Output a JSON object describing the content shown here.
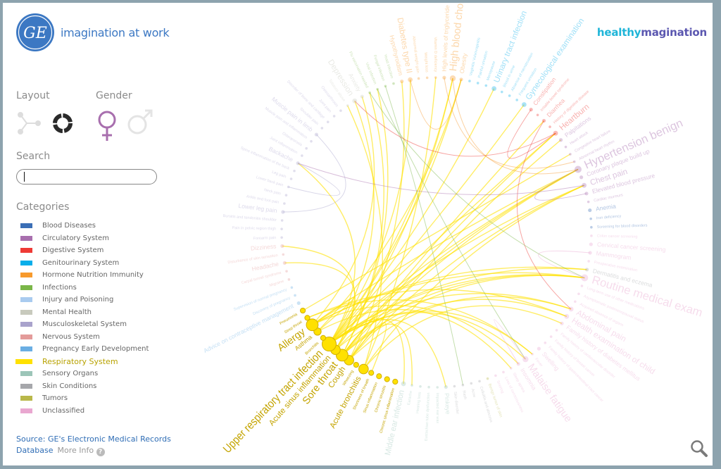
{
  "header": {
    "tagline": "imagination at work",
    "brand_part1": "healthy",
    "brand_part2": "magination",
    "logo_text": "GE"
  },
  "controls": {
    "layout_label": "Layout",
    "layout_options": [
      "network",
      "circle"
    ],
    "layout_selected": "circle",
    "gender_label": "Gender",
    "gender_options": [
      "female",
      "male"
    ],
    "gender_selected": "female",
    "search_label": "Search",
    "search_value": "",
    "search_placeholder": "",
    "categories_label": "Categories"
  },
  "categories": [
    {
      "id": "bl",
      "name": "Blood Diseases",
      "color": "#3b6fb6"
    },
    {
      "id": "ci",
      "name": "Circulatory System",
      "color": "#a86fae"
    },
    {
      "id": "di",
      "name": "Digestive System",
      "color": "#ee3a35"
    },
    {
      "id": "ge",
      "name": "Genitourinary System",
      "color": "#09aeea"
    },
    {
      "id": "ho",
      "name": "Hormone Nutrition Immunity",
      "color": "#f79a2d"
    },
    {
      "id": "in",
      "name": "Infections",
      "color": "#7ab648"
    },
    {
      "id": "ij",
      "name": "Injury and Poisoning",
      "color": "#a9cbef"
    },
    {
      "id": "me",
      "name": "Mental Health",
      "color": "#c8cabd"
    },
    {
      "id": "mu",
      "name": "Musculoskeletal System",
      "color": "#a9a3cc"
    },
    {
      "id": "ne",
      "name": "Nervous System",
      "color": "#e39b9a"
    },
    {
      "id": "pr",
      "name": "Pregnancy  Early Development",
      "color": "#6aaee3"
    },
    {
      "id": "re",
      "name": "Respiratory System",
      "color": "#ffe100"
    },
    {
      "id": "se",
      "name": "Sensory Organs",
      "color": "#9cc5b8"
    },
    {
      "id": "sk",
      "name": "Skin Conditions",
      "color": "#a6a7ab"
    },
    {
      "id": "tu",
      "name": "Tumors",
      "color": "#b9b84a"
    },
    {
      "id": "un",
      "name": "Unclassified",
      "color": "#e9a7d0"
    }
  ],
  "selected_category": "re",
  "footer": {
    "source": "Source: GE's Electronic Medical Records Database",
    "more_info": "More Info",
    "help": "?"
  },
  "chart_data": {
    "type": "chord-circle",
    "nodes": [
      [
        "Hypertension benign",
        "ci",
        5
      ],
      [
        "Coronary plaque build up",
        "ci",
        2
      ],
      [
        "Chest pain",
        "ci",
        3
      ],
      [
        "Elevated blood pressure",
        "ci",
        2
      ],
      [
        "Cardiac murmurs",
        "ci",
        1
      ],
      [
        "Anemia",
        "bl",
        2
      ],
      [
        "Iron deficiency",
        "bl",
        1
      ],
      [
        "Screening for blood disorders",
        "bl",
        1
      ],
      [
        "Colon cancer screening",
        "un",
        1
      ],
      [
        "Cervical cancer screening",
        "un",
        2
      ],
      [
        "Mammogram",
        "un",
        2
      ],
      [
        "Preoperative examination",
        "un",
        1
      ],
      [
        "Dermatitis and eczema",
        "sk",
        2
      ],
      [
        "Routine medical exam",
        "un",
        5
      ],
      [
        "Long-term use of other medications",
        "un",
        1
      ],
      [
        "Asymptomatic postmenopausal status",
        "un",
        1
      ],
      [
        "Acquired absence of organs",
        "un",
        1
      ],
      [
        "Abdominal pain",
        "un",
        3
      ],
      [
        "Health examination of child",
        "un",
        3
      ],
      [
        "Family history of diabetes mellitus",
        "un",
        2
      ],
      [
        "Family history of cardiovascular disorder",
        "un",
        1
      ],
      [
        "Family history of breast cancer",
        "un",
        1
      ],
      [
        "Family history of gastrointestinal tract cancer",
        "un",
        1
      ],
      [
        "Swelling",
        "un",
        2
      ],
      [
        "Fever",
        "un",
        1
      ],
      [
        "Malaise fatigue",
        "un",
        4
      ],
      [
        "Insomnia",
        "un",
        2
      ],
      [
        "Sleep apnea",
        "un",
        1
      ],
      [
        "Loss of consciousness",
        "un",
        1
      ],
      [
        "Snoring",
        "un",
        1
      ],
      [
        "Benign tumor of skin",
        "tu",
        1
      ],
      [
        "Cellulitis and abscess",
        "sk",
        1
      ],
      [
        "Acne",
        "sk",
        1
      ],
      [
        "Rash",
        "sk",
        1
      ],
      [
        "Skin disorder",
        "sk",
        1
      ],
      [
        "Pinkeye",
        "se",
        2
      ],
      [
        "Impacted ear wax",
        "se",
        1
      ],
      [
        "Eustachian tube dysfunction",
        "se",
        1
      ],
      [
        "Hearing loss",
        "se",
        1
      ],
      [
        "Earache",
        "se",
        1
      ],
      [
        "Middle ear infection",
        "se",
        3
      ],
      [
        "Chronic sinus inflammation",
        "re",
        1
      ],
      [
        "Chronic sinusitis",
        "re",
        1
      ],
      [
        "Sinus inflammation",
        "re",
        1
      ],
      [
        "Shortness of breath",
        "re",
        1
      ],
      [
        "Acute bronchitis",
        "re",
        3
      ],
      [
        "Wheezing",
        "re",
        1
      ],
      [
        "Cough",
        "re",
        3
      ],
      [
        "Sore throat",
        "re",
        4
      ],
      [
        "Acute sinus inflammation",
        "re",
        3
      ],
      [
        "Upper respiratory tract infection",
        "re",
        5
      ],
      [
        "Bronchitis",
        "re",
        1
      ],
      [
        "Asthma",
        "re",
        2
      ],
      [
        "Allergy",
        "re",
        4
      ],
      [
        "Strep throat",
        "re",
        1
      ],
      [
        "Pneumonia",
        "re",
        1
      ],
      [
        "Advice on contraceptive management",
        "pr",
        2
      ],
      [
        "Discovery of pregnancy",
        "pr",
        1
      ],
      [
        "Supervision of normal pregnancy",
        "pr",
        1
      ],
      [
        "Migraine",
        "ne",
        1
      ],
      [
        "Carpal tunnel syndrome",
        "ne",
        1
      ],
      [
        "Headache",
        "ne",
        2
      ],
      [
        "Disturbance of skin sensation",
        "ne",
        1
      ],
      [
        "Dizziness",
        "ne",
        2
      ],
      [
        "Forearm pain",
        "mu",
        1
      ],
      [
        "Pain in pelvic region  thigh",
        "mu",
        1
      ],
      [
        "Bursitis and tendonitis  shoulder",
        "mu",
        1
      ],
      [
        "Lower leg pain",
        "mu",
        2
      ],
      [
        "Ankle and foot pain",
        "mu",
        1
      ],
      [
        "Neck pain",
        "mu",
        1
      ],
      [
        "Lower back pain",
        "mu",
        1
      ],
      [
        "Leg pain",
        "mu",
        1
      ],
      [
        "Spine inflammation of the back",
        "mu",
        1
      ],
      [
        "Backache",
        "mu",
        2
      ],
      [
        "Joint inflammation",
        "mu",
        1
      ],
      [
        "Osteoporosis",
        "mu",
        1
      ],
      [
        "Muscle pain and inflammation",
        "mu",
        1
      ],
      [
        "Muscle pain in limb",
        "mu",
        2
      ],
      [
        "Shoulder pain",
        "mu",
        1
      ],
      [
        "Disorder of bone and cartilage",
        "mu",
        1
      ],
      [
        "Joint pain",
        "mu",
        1
      ],
      [
        "Osteoarthrosis",
        "mu",
        1
      ],
      [
        "Tobacco abuse",
        "me",
        1
      ],
      [
        "Depression",
        "me",
        3
      ],
      [
        "Anxiety",
        "me",
        2
      ],
      [
        "Flu vaccination needed",
        "in",
        1
      ],
      [
        "Viral infection",
        "in",
        1
      ],
      [
        "Fungal infection",
        "in",
        1
      ],
      [
        "Yeast infection",
        "in",
        1
      ],
      [
        "Hypothyroidism",
        "ho",
        2
      ],
      [
        "Diabetes type II",
        "ho",
        3
      ],
      [
        "Abnormal weight gain",
        "ho",
        1
      ],
      [
        "Weight loss",
        "ho",
        1
      ],
      [
        "Vitamin D deficiency",
        "ho",
        1
      ],
      [
        "High levels of triglyceride",
        "ho",
        2
      ],
      [
        "High blood cholesterol",
        "ho",
        4
      ],
      [
        "Obesity",
        "ho",
        2
      ],
      [
        "Vaginitis  Vulvovaginitis",
        "ge",
        1
      ],
      [
        "Painful urination",
        "ge",
        1
      ],
      [
        "Menopause",
        "ge",
        1
      ],
      [
        "Urinary tract infection",
        "ge",
        3
      ],
      [
        "Blood in urine",
        "ge",
        1
      ],
      [
        "Absence of menstruation",
        "ge",
        1
      ],
      [
        "Frequent urination",
        "ge",
        1
      ],
      [
        "Gynecological examination",
        "ge",
        3
      ],
      [
        "Constipation",
        "di",
        2
      ],
      [
        "Irritable bowel syndrome",
        "di",
        1
      ],
      [
        "Diarrhea",
        "di",
        2
      ],
      [
        "History of digestive disease",
        "di",
        1
      ],
      [
        "Heartburn",
        "di",
        3
      ],
      [
        "Palpitations",
        "ci",
        2
      ],
      [
        "Heart attack",
        "ci",
        1
      ],
      [
        "Congestive heart failure",
        "ci",
        1
      ],
      [
        "Abnormal heart rhythm",
        "ci",
        1
      ]
    ],
    "links": [
      [
        "Upper respiratory tract infection",
        "Hypertension benign"
      ],
      [
        "Upper respiratory tract infection",
        "Chest pain"
      ],
      [
        "Upper respiratory tract infection",
        "Routine medical exam"
      ],
      [
        "Upper respiratory tract infection",
        "Heartburn"
      ],
      [
        "Upper respiratory tract infection",
        "High blood cholesterol"
      ],
      [
        "Upper respiratory tract infection",
        "Diabetes type II"
      ],
      [
        "Upper respiratory tract infection",
        "Urinary tract infection"
      ],
      [
        "Upper respiratory tract infection",
        "Abdominal pain"
      ],
      [
        "Upper respiratory tract infection",
        "Malaise fatigue"
      ],
      [
        "Upper respiratory tract infection",
        "Depression"
      ],
      [
        "Upper respiratory tract infection",
        "Backache"
      ],
      [
        "Upper respiratory tract infection",
        "Gynecological examination"
      ],
      [
        "Upper respiratory tract infection",
        "Obesity"
      ],
      [
        "Upper respiratory tract infection",
        "Dermatitis and eczema"
      ],
      [
        "Upper respiratory tract infection",
        "Fever"
      ],
      [
        "Upper respiratory tract infection",
        "Pinkeye"
      ],
      [
        "Upper respiratory tract infection",
        "Middle ear infection"
      ],
      [
        "Sore throat",
        "Hypertension benign"
      ],
      [
        "Sore throat",
        "Routine medical exam"
      ],
      [
        "Sore throat",
        "Heartburn"
      ],
      [
        "Sore throat",
        "Diarrhea"
      ],
      [
        "Sore throat",
        "Viral infection"
      ],
      [
        "Sore throat",
        "Flu vaccination needed"
      ],
      [
        "Sore throat",
        "Health examination of child"
      ],
      [
        "Sore throat",
        "Earache"
      ],
      [
        "Sore throat",
        "Cough"
      ],
      [
        "Acute sinus inflammation",
        "Headache"
      ],
      [
        "Acute sinus inflammation",
        "Routine medical exam"
      ],
      [
        "Acute sinus inflammation",
        "Hypertension benign"
      ],
      [
        "Acute sinus inflammation",
        "High blood cholesterol"
      ],
      [
        "Acute sinus inflammation",
        "Allergy"
      ],
      [
        "Acute sinus inflammation",
        "Dizziness"
      ],
      [
        "Allergy",
        "Asthma"
      ],
      [
        "Allergy",
        "Dermatitis and eczema"
      ],
      [
        "Allergy",
        "Hypertension benign"
      ],
      [
        "Allergy",
        "Routine medical exam"
      ],
      [
        "Allergy",
        "Insomnia"
      ],
      [
        "Allergy",
        "Anxiety"
      ],
      [
        "Cough",
        "Shortness of breath"
      ],
      [
        "Cough",
        "Chest pain"
      ],
      [
        "Cough",
        "Abdominal pain"
      ],
      [
        "Cough",
        "Palpitations"
      ],
      [
        "Cough",
        "Hypothyroidism"
      ],
      [
        "Acute bronchitis",
        "Chest pain"
      ],
      [
        "Acute bronchitis",
        "Tobacco abuse"
      ],
      [
        "Acute bronchitis",
        "Family history of diabetes mellitus"
      ],
      [
        "Acute bronchitis",
        "Vitamin D deficiency"
      ],
      [
        "Asthma",
        "Sleep apnea"
      ],
      [
        "Asthma",
        "Obesity"
      ],
      [
        "Strep throat",
        "Fever"
      ],
      [
        "Strep throat",
        "Health examination of child"
      ],
      [
        "Pneumonia",
        "Congestive heart failure"
      ],
      [
        "Heartburn",
        "Constipation"
      ],
      [
        "Diarrhea",
        "Abdominal pain"
      ],
      [
        "Hypertension benign",
        "Elevated blood pressure"
      ],
      [
        "Chest pain",
        "Backache"
      ],
      [
        "Viral infection",
        "Malaise fatigue"
      ],
      [
        "Flu vaccination needed",
        "Routine medical exam"
      ],
      [
        "Fungal infection",
        "Rash"
      ],
      [
        "High blood cholesterol",
        "Hypertension benign"
      ],
      [
        "Diabetes type II",
        "Obesity"
      ],
      [
        "High levels of triglyceride",
        "Abnormal heart rhythm"
      ],
      [
        "Backache",
        "Lower back pain"
      ],
      [
        "Muscle pain in limb",
        "Lower leg pain"
      ],
      [
        "Routine medical exam",
        "Mammogram"
      ],
      [
        "Malaise fatigue",
        "Insomnia"
      ],
      [
        "Heartburn",
        "Depression"
      ]
    ]
  }
}
